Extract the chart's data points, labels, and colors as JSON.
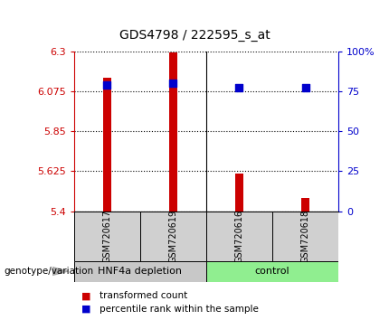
{
  "title": "GDS4798 / 222595_s_at",
  "samples": [
    "GSM720617",
    "GSM720619",
    "GSM720616",
    "GSM720618"
  ],
  "transformed_counts": [
    6.15,
    6.295,
    5.61,
    5.475
  ],
  "percentile_ranks": [
    79,
    80,
    77,
    77
  ],
  "ylim_left": [
    5.4,
    6.3
  ],
  "ylim_right": [
    0,
    100
  ],
  "yticks_left": [
    5.4,
    5.625,
    5.85,
    6.075,
    6.3
  ],
  "ytick_labels_left": [
    "5.4",
    "5.625",
    "5.85",
    "6.075",
    "6.3"
  ],
  "yticks_right": [
    0,
    25,
    50,
    75,
    100
  ],
  "ytick_labels_right": [
    "0",
    "25",
    "50",
    "75",
    "100%"
  ],
  "bar_color": "#cc0000",
  "dot_color": "#0000cc",
  "baseline": 5.4,
  "bar_width": 0.12,
  "dot_size": 40,
  "group_info": [
    {
      "start": 1,
      "end": 2,
      "label": "HNF4a depletion",
      "color": "#c8c8c8"
    },
    {
      "start": 3,
      "end": 4,
      "label": "control",
      "color": "#90ee90"
    }
  ],
  "sample_box_color": "#d0d0d0",
  "title_fontsize": 10,
  "axis_label_fontsize": 8,
  "sample_label_fontsize": 7,
  "group_label_fontsize": 8
}
